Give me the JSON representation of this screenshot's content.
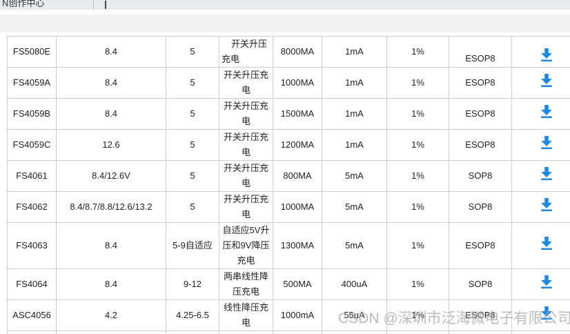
{
  "header": {
    "nav_text": "N创作中心",
    "caret": "text-cursor"
  },
  "watermark": "CSDN @深圳市泛海微电子有限公司",
  "colors": {
    "download_blue": "#1e88e5",
    "watermark_gray": "#a9a9a9",
    "table_border": "#cccccc",
    "topbar1_bg": "#e7eaee",
    "topbar2_bg": "#eff1f3"
  },
  "table": {
    "download_icon": "download-icon",
    "rows": [
      {
        "part": "FS5080E",
        "output_v": "8.4",
        "input_v": "5",
        "type": "开关升压充电",
        "current": "8000MA",
        "quiescent": "1mA",
        "accuracy": "1%",
        "package": "ESOP8"
      },
      {
        "part": "FS4059A",
        "output_v": "8.4",
        "input_v": "5",
        "type": "开关升压充电",
        "current": "1000MA",
        "quiescent": "1mA",
        "accuracy": "1%",
        "package": "ESOP8"
      },
      {
        "part": "FS4059B",
        "output_v": "8.4",
        "input_v": "5",
        "type": "开关升压充电",
        "current": "1500MA",
        "quiescent": "1mA",
        "accuracy": "1%",
        "package": "ESOP8"
      },
      {
        "part": "FS4059C",
        "output_v": "12.6",
        "input_v": "5",
        "type": "开关升压充电",
        "current": "1200MA",
        "quiescent": "1mA",
        "accuracy": "1%",
        "package": "ESOP8"
      },
      {
        "part": "FS4061",
        "output_v": "8.4/12.6V",
        "input_v": "5",
        "type": "开关升压充电",
        "current": "800MA",
        "quiescent": "5mA",
        "accuracy": "1%",
        "package": "SOP8"
      },
      {
        "part": "FS4062",
        "output_v": "8.4/8.7/8.8/12.6/13.2",
        "input_v": "5",
        "type": "开关升压充电",
        "current": "1000MA",
        "quiescent": "5mA",
        "accuracy": "1%",
        "package": "SOP8"
      },
      {
        "part": "FS4063",
        "output_v": "8.4",
        "input_v": "5-9自适应",
        "type": "自适应5V升压和9V降压充电",
        "current": "1300MA",
        "quiescent": "5mA",
        "accuracy": "1%",
        "package": "ESOP8"
      },
      {
        "part": "FS4064",
        "output_v": "8.4",
        "input_v": "9-12",
        "type": "两串线性降压充电",
        "current": "500MA",
        "quiescent": "400uA",
        "accuracy": "1%",
        "package": "SOP8"
      },
      {
        "part": "ASC4056",
        "output_v": "4.2",
        "input_v": "4.25-6.5",
        "type": "线性降压充电",
        "current": "1000mA",
        "quiescent": "55uA",
        "accuracy": "1%",
        "package": "ESOP8"
      }
    ]
  }
}
